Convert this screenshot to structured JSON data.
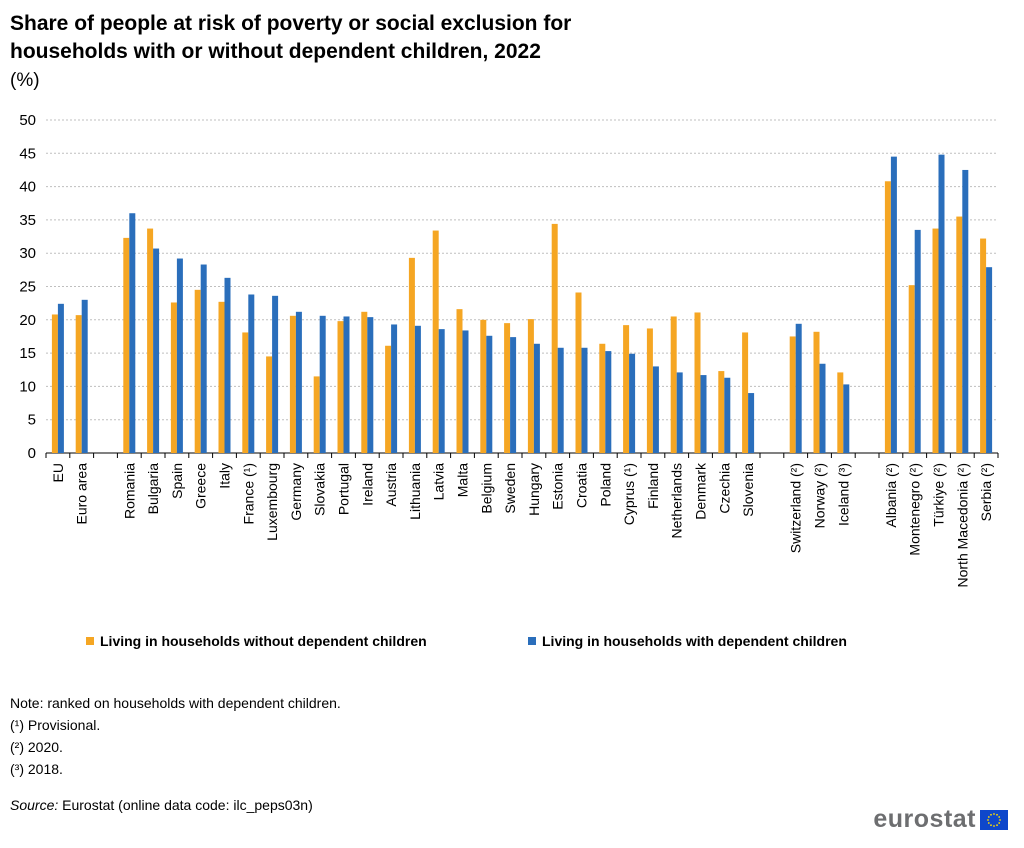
{
  "title_line1": "Share of people at risk of poverty or social exclusion for",
  "title_line2": "households with or without dependent children, 2022",
  "subtitle": "(%)",
  "legend": {
    "without": "Living in households without dependent children",
    "with": "Living in households with dependent children"
  },
  "notes": {
    "note": "Note: ranked on households  with dependent children.",
    "f1": "(¹) Provisional.",
    "f2": "(²) 2020.",
    "f3": "(³) 2018."
  },
  "source": {
    "label": "Source:",
    "text": " Eurostat (online data code: ilc_peps03n)"
  },
  "logo": "eurostat",
  "colors": {
    "without": "#f5a623",
    "with": "#2a6ebb",
    "grid": "#bfbfbf",
    "flag": "#0e47cb",
    "star": "#ffdd00"
  },
  "chart_data": {
    "type": "bar",
    "ylim": [
      0,
      50
    ],
    "yticks": [
      0,
      5,
      10,
      15,
      20,
      25,
      30,
      35,
      40,
      45,
      50
    ],
    "grid": true,
    "legend_position": "bottom",
    "categories": [
      "EU",
      "Euro area",
      "",
      "Romania",
      "Bulgaria",
      "Spain",
      "Greece",
      "Italy",
      "France (¹)",
      "Luxembourg",
      "Germany",
      "Slovakia",
      "Portugal",
      "Ireland",
      "Austria",
      "Lithuania",
      "Latvia",
      "Malta",
      "Belgium",
      "Sweden",
      "Hungary",
      "Estonia",
      "Croatia",
      "Poland",
      "Cyprus (¹)",
      "Finland",
      "Netherlands",
      "Denmark",
      "Czechia",
      "Slovenia",
      "",
      "Switzerland (²)",
      "Norway (²)",
      "Iceland (³)",
      "",
      "Albania (²)",
      "Montenegro (²)",
      "Türkiye (²)",
      "North Macedonia (²)",
      "Serbia (²)"
    ],
    "series": [
      {
        "name": "Living in households without dependent children",
        "values": [
          20.8,
          20.7,
          null,
          32.3,
          33.7,
          22.6,
          24.5,
          22.7,
          18.1,
          14.5,
          20.6,
          11.5,
          19.8,
          21.2,
          16.1,
          29.3,
          33.4,
          21.6,
          20.0,
          19.5,
          20.1,
          34.4,
          24.1,
          16.4,
          19.2,
          18.7,
          20.5,
          21.1,
          12.3,
          18.1,
          null,
          17.5,
          18.2,
          12.1,
          null,
          40.8,
          25.2,
          33.7,
          35.5,
          32.2
        ]
      },
      {
        "name": "Living in households with dependent children",
        "values": [
          22.4,
          23.0,
          null,
          36.0,
          30.7,
          29.2,
          28.3,
          26.3,
          23.8,
          23.6,
          21.2,
          20.6,
          20.5,
          20.4,
          19.3,
          19.1,
          18.6,
          18.4,
          17.6,
          17.4,
          16.4,
          15.8,
          15.8,
          15.3,
          14.9,
          13.0,
          12.1,
          11.7,
          11.3,
          9.0,
          null,
          19.4,
          13.4,
          10.3,
          null,
          44.5,
          33.5,
          44.8,
          42.5,
          27.9
        ]
      }
    ]
  }
}
